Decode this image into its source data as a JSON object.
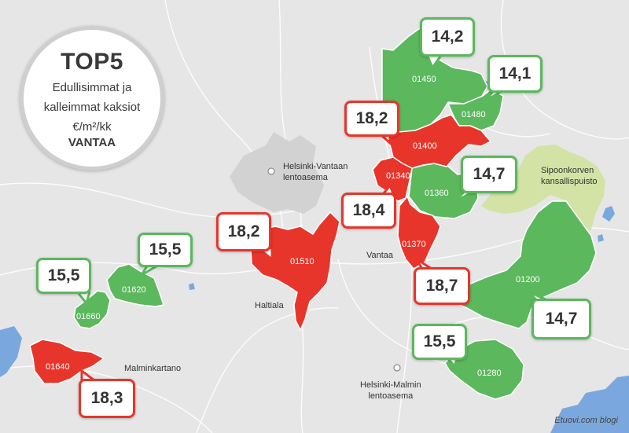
{
  "title": {
    "heading": "TOP5",
    "line1": "Edullisimmat ja",
    "line2": "kalleimmat kaksiot",
    "unit": "€/m²/kk",
    "city": "VANTAA"
  },
  "colors": {
    "cheap": "#5bb85d",
    "expensive": "#e8352b",
    "park": "#d3e3a6",
    "airport": "#d2d2d2",
    "water": "#7aa8de",
    "land": "#e6e6e6"
  },
  "areas": [
    {
      "code": "01450",
      "price": "14,2",
      "category": "cheap"
    },
    {
      "code": "01480",
      "price": "14,1",
      "category": "cheap"
    },
    {
      "code": "01400",
      "price": "18,2",
      "category": "expensive"
    },
    {
      "code": "01340",
      "price": "18,4",
      "category": "expensive"
    },
    {
      "code": "01360",
      "price": "14,7",
      "category": "cheap"
    },
    {
      "code": "01370",
      "price": "18,7",
      "category": "expensive"
    },
    {
      "code": "01200",
      "price": "14,7",
      "category": "cheap"
    },
    {
      "code": "01280",
      "price": "15,5",
      "category": "cheap"
    },
    {
      "code": "01510",
      "price": "18,2",
      "category": "expensive"
    },
    {
      "code": "01620",
      "price": "15,5",
      "category": "cheap"
    },
    {
      "code": "01660",
      "price": "15,5",
      "category": "cheap"
    },
    {
      "code": "01640",
      "price": "18,3",
      "category": "expensive"
    }
  ],
  "places": {
    "helsinki_vantaa_line1": "Helsinki-Vantaan",
    "helsinki_vantaa_line2": "lentoasema",
    "sipoonkorpi_line1": "Sipoonkorven",
    "sipoonkorpi_line2": "kansallispuisto",
    "vantaa": "Vantaa",
    "haltiala": "Haltiala",
    "malminkartano": "Malminkartano",
    "malmi_line1": "Helsinki-Malmin",
    "malmi_line2": "lentoasema"
  },
  "source": "Etuovi.com blogi"
}
